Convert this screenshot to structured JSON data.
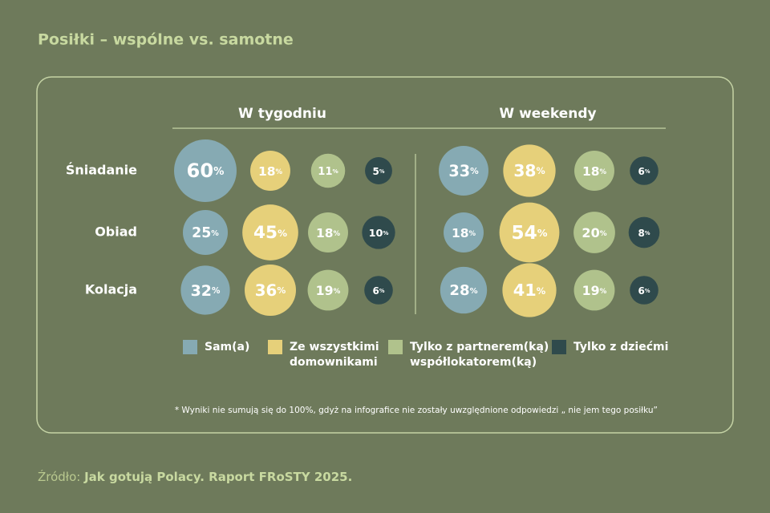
{
  "chart_data": {
    "type": "bubble",
    "title": "Posiłki – wspólne vs. samotne",
    "groups": [
      "W tygodniu",
      "W weekendy"
    ],
    "categories": [
      "Śniadanie",
      "Obiad",
      "Kolacja"
    ],
    "series": [
      {
        "name": "Sam(a)",
        "color": "#86aab3",
        "values": [
          60,
          25,
          32,
          33,
          18,
          28
        ],
        "value_labels": [
          "60%",
          "25%",
          "32%",
          "33%",
          "18%",
          "28%"
        ]
      },
      {
        "name": "Ze wszystkimi domownikami",
        "color": "#e6d07a",
        "values": [
          18,
          45,
          36,
          38,
          54,
          41
        ],
        "value_labels": [
          "18%",
          "45%",
          "36%",
          "38%",
          "54%",
          "41%"
        ]
      },
      {
        "name": "Tylko z partnerem(ką) współlokatorem(ką)",
        "color": "#b0c28c",
        "values": [
          11,
          18,
          19,
          18,
          20,
          19
        ],
        "value_labels": [
          "11%",
          "18%",
          "19%",
          "18%",
          "20%",
          "19%"
        ]
      },
      {
        "name": "Tylko z dziećmi",
        "color": "#2f4a4c",
        "values": [
          5,
          10,
          6,
          6,
          8,
          6
        ],
        "value_labels": [
          "5%",
          "10%",
          "6%",
          "6%",
          "8%",
          "6%"
        ]
      }
    ],
    "note": "* Wyniki nie sumują się do 100%, gdyż na infografice nie zostały uwzględnione odpowiedzi „ nie jem tego posiłku”",
    "source_label": "Źródło:",
    "source": "Jak gotują Polacy. Raport FRoSTY 2025."
  }
}
